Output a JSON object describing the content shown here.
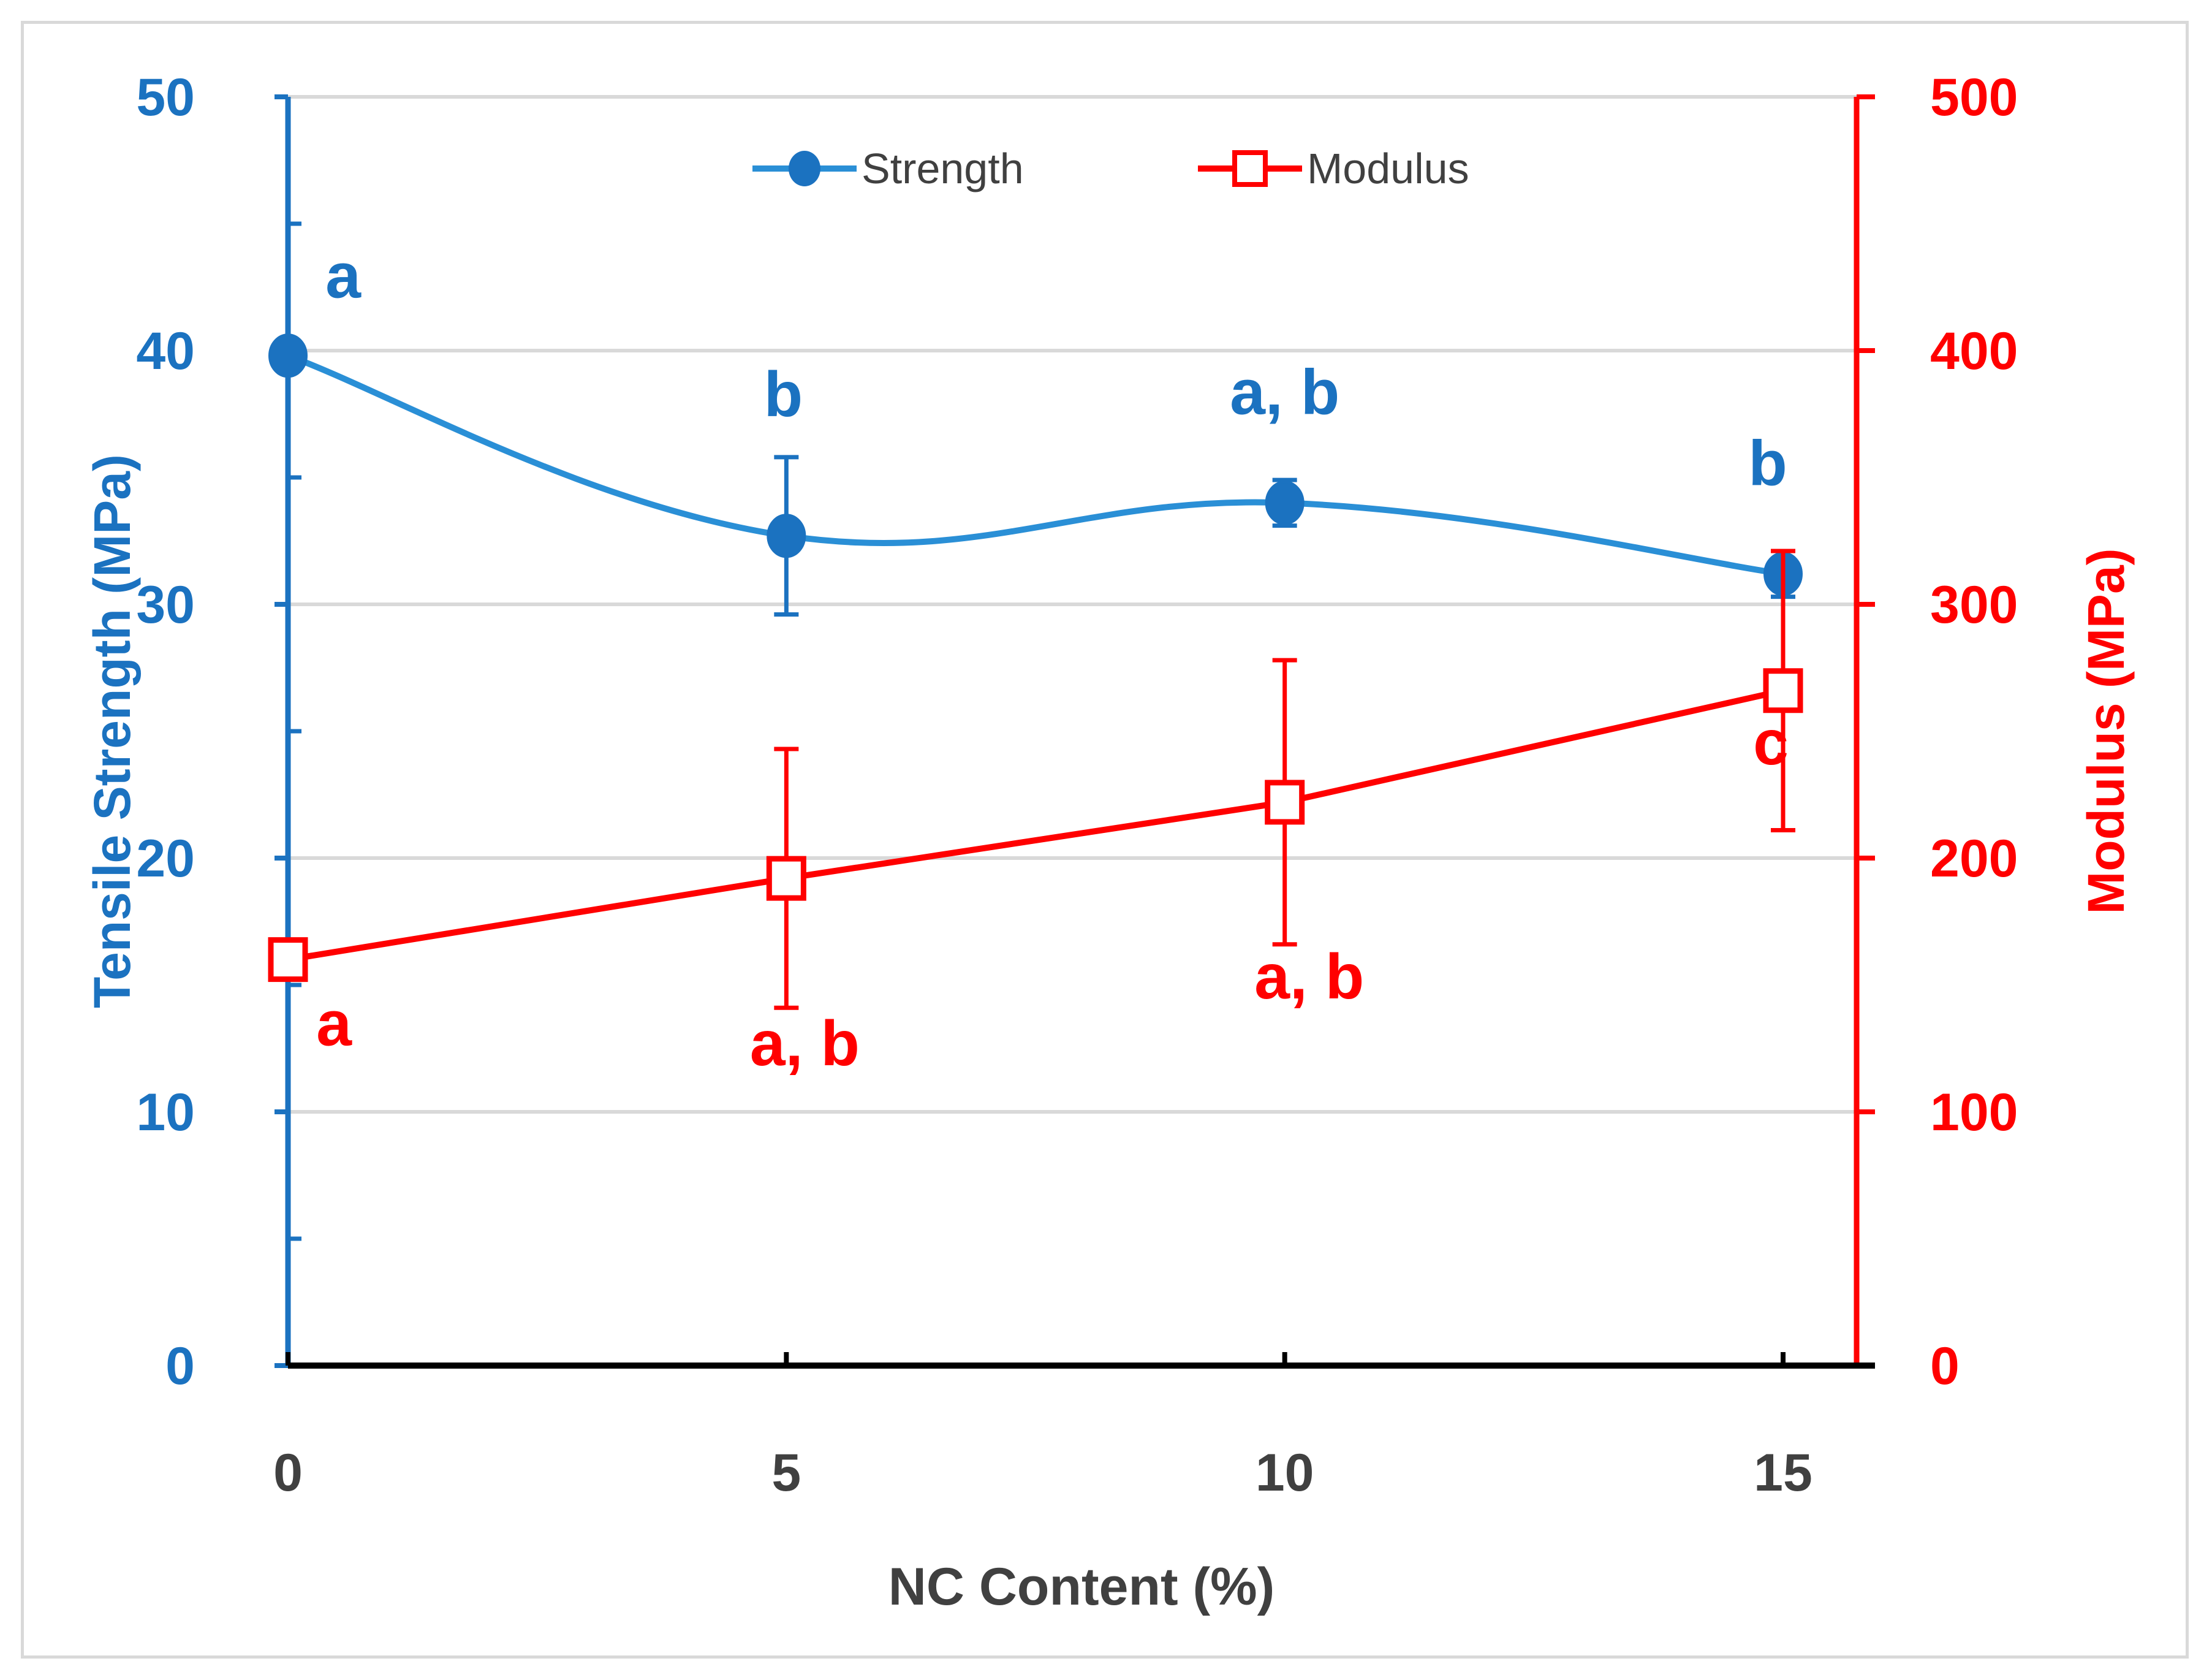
{
  "chart_data": {
    "type": "line",
    "x": [
      0,
      5,
      10,
      15
    ],
    "xlabel": "NC Content (%)",
    "x_tick_labels": [
      "0",
      "5",
      "10",
      "15"
    ],
    "y_left": {
      "label": "Tensile Strength (MPa)",
      "lim": [
        0,
        50
      ],
      "tick_labels": [
        "0",
        "10",
        "20",
        "30",
        "40",
        "50"
      ],
      "color": "#1b72c0"
    },
    "y_right": {
      "label": "Modulus (MPa)",
      "lim": [
        0,
        500
      ],
      "tick_labels": [
        "0",
        "100",
        "200",
        "300",
        "400",
        "500"
      ],
      "color": "#ff0000"
    },
    "series": [
      {
        "name": "Strength",
        "axis": "left",
        "color": "#2a8fd6",
        "marker": "circle",
        "smooth": true,
        "values": [
          39.8,
          32.7,
          34.0,
          31.2
        ],
        "error": [
          0.0,
          3.1,
          0.9,
          0.9
        ],
        "annotations": [
          "a",
          "b",
          "a, b",
          "b"
        ]
      },
      {
        "name": "Modulus",
        "axis": "right",
        "color": "#ff0000",
        "marker": "square-open",
        "smooth": false,
        "values": [
          160,
          192,
          222,
          266
        ],
        "error": [
          0,
          51,
          56,
          55
        ],
        "annotations": [
          "a",
          "a, b",
          "a, b",
          "c"
        ]
      }
    ],
    "grid": true,
    "legend_position": "top-center"
  }
}
